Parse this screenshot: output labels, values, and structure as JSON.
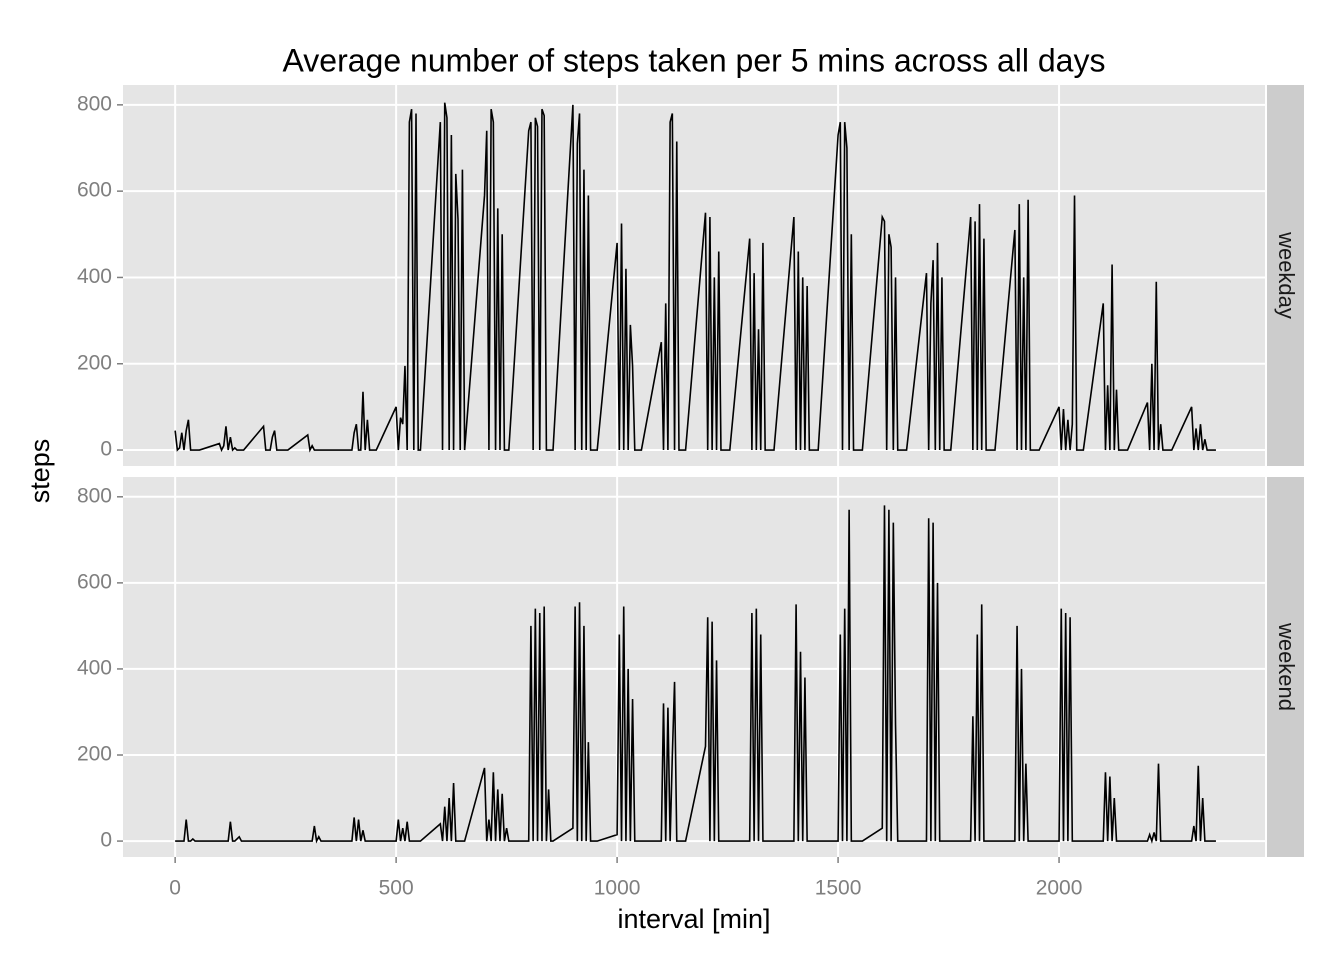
{
  "chart_data": {
    "type": "line",
    "title": "Average number of steps taken per 5 mins across all days",
    "xlabel": "interval [min]",
    "ylabel": "steps",
    "xlim": [
      -118,
      2466
    ],
    "xticks": [
      0,
      500,
      1000,
      1500,
      2000
    ],
    "ylim": [
      -37,
      846
    ],
    "yticks": [
      0,
      200,
      400,
      600,
      800
    ],
    "grid": true,
    "x": [
      0,
      5,
      10,
      15,
      20,
      25,
      30,
      35,
      40,
      45,
      50,
      55,
      100,
      105,
      110,
      115,
      120,
      125,
      130,
      135,
      140,
      145,
      150,
      155,
      200,
      205,
      210,
      215,
      220,
      225,
      230,
      235,
      240,
      245,
      250,
      255,
      300,
      305,
      310,
      315,
      320,
      325,
      330,
      335,
      340,
      345,
      350,
      355,
      400,
      405,
      410,
      415,
      420,
      425,
      430,
      435,
      440,
      445,
      450,
      455,
      500,
      505,
      510,
      515,
      520,
      525,
      530,
      535,
      540,
      545,
      550,
      555,
      600,
      605,
      610,
      615,
      620,
      625,
      630,
      635,
      640,
      645,
      650,
      655,
      700,
      705,
      710,
      715,
      720,
      725,
      730,
      735,
      740,
      745,
      750,
      755,
      800,
      805,
      810,
      815,
      820,
      825,
      830,
      835,
      840,
      845,
      850,
      855,
      900,
      905,
      910,
      915,
      920,
      925,
      930,
      935,
      940,
      945,
      950,
      955,
      1000,
      1005,
      1010,
      1015,
      1020,
      1025,
      1030,
      1035,
      1040,
      1045,
      1050,
      1055,
      1100,
      1105,
      1110,
      1115,
      1120,
      1125,
      1130,
      1135,
      1140,
      1145,
      1150,
      1155,
      1200,
      1205,
      1210,
      1215,
      1220,
      1225,
      1230,
      1235,
      1240,
      1245,
      1250,
      1255,
      1300,
      1305,
      1310,
      1315,
      1320,
      1325,
      1330,
      1335,
      1340,
      1345,
      1350,
      1355,
      1400,
      1405,
      1410,
      1415,
      1420,
      1425,
      1430,
      1435,
      1440,
      1445,
      1450,
      1455,
      1500,
      1505,
      1510,
      1515,
      1520,
      1525,
      1530,
      1535,
      1540,
      1545,
      1550,
      1555,
      1600,
      1605,
      1610,
      1615,
      1620,
      1625,
      1630,
      1635,
      1640,
      1645,
      1650,
      1655,
      1700,
      1705,
      1710,
      1715,
      1720,
      1725,
      1730,
      1735,
      1740,
      1745,
      1750,
      1755,
      1800,
      1805,
      1810,
      1815,
      1820,
      1825,
      1830,
      1835,
      1840,
      1845,
      1850,
      1855,
      1900,
      1905,
      1910,
      1915,
      1920,
      1925,
      1930,
      1935,
      1940,
      1945,
      1950,
      1955,
      2000,
      2005,
      2010,
      2015,
      2020,
      2025,
      2030,
      2035,
      2040,
      2045,
      2050,
      2055,
      2100,
      2105,
      2110,
      2115,
      2120,
      2125,
      2130,
      2135,
      2140,
      2145,
      2150,
      2155,
      2200,
      2205,
      2210,
      2215,
      2220,
      2225,
      2230,
      2235,
      2240,
      2245,
      2250,
      2255,
      2300,
      2305,
      2310,
      2315,
      2320,
      2325,
      2330,
      2335,
      2340,
      2345,
      2350,
      2355
    ],
    "series": [
      {
        "name": "weekday",
        "color": "#000000",
        "values": [
          45,
          0,
          5,
          40,
          0,
          45,
          70,
          0,
          0,
          0,
          0,
          0,
          15,
          0,
          10,
          55,
          0,
          30,
          0,
          5,
          0,
          0,
          0,
          0,
          55,
          0,
          0,
          0,
          30,
          45,
          0,
          0,
          0,
          0,
          0,
          0,
          35,
          0,
          10,
          0,
          0,
          0,
          0,
          0,
          0,
          0,
          0,
          0,
          0,
          40,
          60,
          0,
          0,
          135,
          0,
          70,
          0,
          0,
          0,
          0,
          100,
          0,
          75,
          60,
          195,
          0,
          760,
          790,
          0,
          780,
          0,
          0,
          760,
          0,
          805,
          770,
          0,
          730,
          0,
          640,
          535,
          0,
          650,
          0,
          590,
          740,
          0,
          790,
          760,
          0,
          560,
          0,
          500,
          0,
          0,
          0,
          740,
          760,
          0,
          770,
          750,
          0,
          790,
          775,
          0,
          0,
          0,
          0,
          800,
          0,
          710,
          780,
          0,
          650,
          0,
          590,
          0,
          0,
          0,
          0,
          480,
          0,
          525,
          0,
          420,
          0,
          290,
          195,
          0,
          0,
          0,
          0,
          250,
          0,
          340,
          0,
          760,
          780,
          0,
          715,
          0,
          0,
          0,
          0,
          550,
          0,
          540,
          0,
          400,
          0,
          460,
          0,
          0,
          0,
          0,
          0,
          490,
          0,
          410,
          0,
          280,
          0,
          480,
          0,
          0,
          0,
          0,
          0,
          540,
          0,
          460,
          0,
          400,
          0,
          380,
          0,
          0,
          0,
          0,
          0,
          730,
          760,
          0,
          760,
          700,
          0,
          500,
          0,
          0,
          0,
          0,
          0,
          540,
          530,
          0,
          500,
          470,
          0,
          400,
          0,
          0,
          0,
          0,
          0,
          410,
          0,
          340,
          440,
          0,
          480,
          0,
          400,
          0,
          0,
          0,
          0,
          540,
          0,
          530,
          0,
          570,
          0,
          490,
          0,
          0,
          0,
          0,
          0,
          510,
          0,
          570,
          0,
          400,
          0,
          580,
          0,
          0,
          0,
          0,
          0,
          100,
          0,
          95,
          0,
          70,
          0,
          60,
          590,
          0,
          0,
          0,
          0,
          340,
          0,
          150,
          0,
          430,
          0,
          140,
          0,
          0,
          0,
          0,
          0,
          110,
          0,
          200,
          0,
          390,
          0,
          60,
          0,
          0,
          0,
          0,
          0,
          100,
          0,
          50,
          0,
          60,
          0,
          25,
          0,
          0,
          0,
          0,
          0
        ]
      },
      {
        "name": "weekend",
        "color": "#000000",
        "values": [
          0,
          0,
          0,
          0,
          0,
          50,
          0,
          0,
          5,
          0,
          0,
          0,
          0,
          0,
          0,
          0,
          0,
          45,
          0,
          0,
          5,
          10,
          0,
          0,
          0,
          0,
          0,
          0,
          0,
          0,
          0,
          0,
          0,
          0,
          0,
          0,
          0,
          0,
          0,
          35,
          0,
          10,
          0,
          0,
          0,
          0,
          0,
          0,
          0,
          55,
          0,
          50,
          0,
          25,
          0,
          0,
          0,
          0,
          0,
          0,
          0,
          50,
          0,
          30,
          0,
          45,
          0,
          0,
          0,
          0,
          0,
          0,
          40,
          0,
          80,
          0,
          100,
          0,
          135,
          0,
          0,
          0,
          0,
          0,
          170,
          0,
          50,
          0,
          160,
          0,
          120,
          0,
          110,
          0,
          30,
          0,
          0,
          500,
          0,
          540,
          0,
          530,
          0,
          545,
          0,
          120,
          0,
          0,
          30,
          545,
          0,
          555,
          0,
          500,
          0,
          230,
          0,
          0,
          0,
          0,
          15,
          480,
          0,
          545,
          0,
          400,
          0,
          330,
          0,
          0,
          0,
          0,
          0,
          320,
          0,
          310,
          0,
          200,
          370,
          0,
          0,
          0,
          0,
          0,
          220,
          520,
          0,
          510,
          0,
          420,
          0,
          0,
          0,
          0,
          0,
          0,
          0,
          530,
          0,
          540,
          0,
          480,
          0,
          0,
          0,
          0,
          0,
          0,
          0,
          550,
          0,
          440,
          0,
          380,
          0,
          0,
          0,
          0,
          0,
          0,
          0,
          480,
          0,
          540,
          0,
          770,
          0,
          0,
          0,
          0,
          0,
          0,
          30,
          780,
          0,
          770,
          0,
          740,
          270,
          0,
          0,
          0,
          0,
          0,
          0,
          750,
          0,
          740,
          0,
          600,
          0,
          0,
          0,
          0,
          0,
          0,
          0,
          290,
          0,
          480,
          0,
          550,
          0,
          0,
          0,
          0,
          0,
          0,
          0,
          500,
          0,
          400,
          0,
          180,
          0,
          0,
          0,
          0,
          0,
          0,
          0,
          540,
          0,
          530,
          0,
          520,
          0,
          0,
          0,
          0,
          0,
          0,
          0,
          160,
          0,
          150,
          0,
          100,
          0,
          0,
          0,
          0,
          0,
          0,
          0,
          15,
          0,
          20,
          0,
          180,
          0,
          0,
          0,
          0,
          0,
          0,
          0,
          35,
          0,
          175,
          0,
          100,
          0,
          0,
          0,
          0,
          0,
          0
        ]
      }
    ]
  }
}
